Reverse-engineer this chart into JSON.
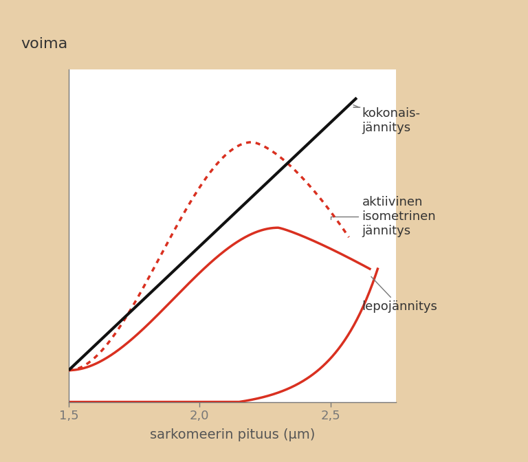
{
  "bg_color": "#e8cfa8",
  "plot_bg_color": "#ffffff",
  "ylabel": "voima",
  "xlabel": "sarkomeerin pituus (μm)",
  "xlim": [
    1.5,
    2.75
  ],
  "ylim": [
    0,
    1.05
  ],
  "xticks": [
    1.5,
    2.0,
    2.5
  ],
  "xticklabels": [
    "1,5",
    "2,0",
    "2,5"
  ],
  "line_color": "#d93020",
  "black_line_color": "#111111",
  "annotation_color": "#444444",
  "annotation1": "kokonais-\njännitys",
  "annotation2": "aktiivinen\nisometrinen\njännitys",
  "annotation3": "lepojännitys",
  "font_size_ylabel": 16,
  "font_size_xlabel": 14,
  "font_size_ticks": 13,
  "font_size_annot": 13
}
